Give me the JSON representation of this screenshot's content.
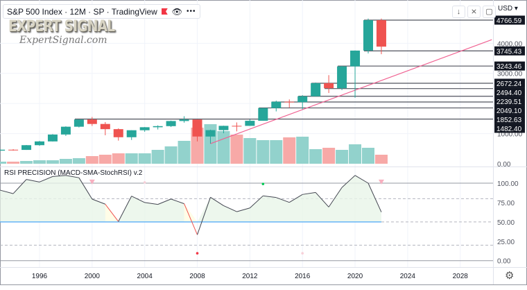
{
  "header": {
    "symbol": "S&P 500 Index",
    "interval": "12M",
    "exchange": "SP",
    "source": "TradingView",
    "legend_text": "S&P 500 Index · 12M · SP  · TradingView",
    "flag_icon": "flag-icon",
    "eye_icon": "eye-icon",
    "more_icon": "more-icon"
  },
  "watermark": {
    "logo": "EXPERT SIGNAL",
    "site": "ExpertSignal.com"
  },
  "toolbar": {
    "buttons": [
      "scroll-down-icon",
      "collapse-icon",
      "maximize-icon"
    ]
  },
  "price_axis": {
    "currency": "USD",
    "ticks": [
      "4000.00",
      "3000.00",
      "1000.00",
      "0.00"
    ]
  },
  "rsi_pane": {
    "title": "RSI PRECISION (MACD-SMA-StochRSI) v.2",
    "ticks": [
      "100.00",
      "75.00",
      "50.00",
      "25.00",
      "0.00"
    ]
  },
  "time_axis": {
    "ticks": [
      "1996",
      "2000",
      "2004",
      "2008",
      "2012",
      "2016",
      "2020",
      "2024",
      "2028"
    ],
    "settings_icon": "gear-icon"
  },
  "colors": {
    "up": "#26a69a",
    "down": "#ef5350",
    "vol_up": "#92d2cc",
    "vol_down": "#f7a9a7",
    "trendline": "#f06292",
    "rsi_line": "#434651",
    "rsi_mid": "#64b5f6"
  },
  "chart_data": [
    {
      "type": "candlestick",
      "title": "S&P 500 Index",
      "ylim": [
        0,
        4766.59
      ],
      "yscale": "linear",
      "grid": true,
      "candles": [
        {
          "year": 1993,
          "o": 435,
          "h": 471,
          "l": 429,
          "c": 466
        },
        {
          "year": 1994,
          "o": 466,
          "h": 482,
          "l": 435,
          "c": 459
        },
        {
          "year": 1995,
          "o": 459,
          "h": 622,
          "l": 459,
          "c": 616
        },
        {
          "year": 1996,
          "o": 616,
          "h": 757,
          "l": 597,
          "c": 741
        },
        {
          "year": 1997,
          "o": 741,
          "h": 983,
          "l": 737,
          "c": 970
        },
        {
          "year": 1998,
          "o": 970,
          "h": 1241,
          "l": 923,
          "c": 1229
        },
        {
          "year": 1999,
          "o": 1229,
          "h": 1469,
          "l": 1205,
          "c": 1469
        },
        {
          "year": 2000,
          "o": 1469,
          "h": 1553,
          "l": 1254,
          "c": 1320
        },
        {
          "year": 2001,
          "o": 1320,
          "h": 1383,
          "l": 945,
          "c": 1148
        },
        {
          "year": 2002,
          "o": 1148,
          "h": 1173,
          "l": 768,
          "c": 880
        },
        {
          "year": 2003,
          "o": 880,
          "h": 1112,
          "l": 789,
          "c": 1112
        },
        {
          "year": 2004,
          "o": 1112,
          "h": 1217,
          "l": 1060,
          "c": 1212
        },
        {
          "year": 2005,
          "o": 1212,
          "h": 1275,
          "l": 1137,
          "c": 1248
        },
        {
          "year": 2006,
          "o": 1248,
          "h": 1431,
          "l": 1219,
          "c": 1418
        },
        {
          "year": 2007,
          "o": 1418,
          "h": 1576,
          "l": 1363,
          "c": 1468
        },
        {
          "year": 2008,
          "o": 1468,
          "h": 1471,
          "l": 741,
          "c": 903
        },
        {
          "year": 2009,
          "o": 903,
          "h": 1130,
          "l": 667,
          "c": 1115
        },
        {
          "year": 2010,
          "o": 1115,
          "h": 1263,
          "l": 1011,
          "c": 1258
        },
        {
          "year": 2011,
          "o": 1258,
          "h": 1371,
          "l": 1075,
          "c": 1257
        },
        {
          "year": 2012,
          "o": 1257,
          "h": 1475,
          "l": 1259,
          "c": 1426
        },
        {
          "year": 2013,
          "o": 1426,
          "h": 1849,
          "l": 1426,
          "c": 1848
        },
        {
          "year": 2014,
          "o": 1848,
          "h": 2094,
          "l": 1737,
          "c": 2059
        },
        {
          "year": 2015,
          "o": 2059,
          "h": 2135,
          "l": 1867,
          "c": 2044
        },
        {
          "year": 2016,
          "o": 2044,
          "h": 2277,
          "l": 1810,
          "c": 2239
        },
        {
          "year": 2017,
          "o": 2239,
          "h": 2695,
          "l": 2239,
          "c": 2674
        },
        {
          "year": 2018,
          "o": 2674,
          "h": 2941,
          "l": 2347,
          "c": 2507
        },
        {
          "year": 2019,
          "o": 2507,
          "h": 3248,
          "l": 2444,
          "c": 3231
        },
        {
          "year": 2020,
          "o": 3231,
          "h": 3760,
          "l": 2192,
          "c": 3756
        },
        {
          "year": 2021,
          "o": 3756,
          "h": 4819,
          "l": 3662,
          "c": 4766
        },
        {
          "year": 2022,
          "o": 4766,
          "h": 4819,
          "l": 3636,
          "c": 3887
        }
      ],
      "volume_relative": [
        3,
        3,
        4,
        5,
        5,
        7,
        8,
        11,
        13,
        15,
        15,
        15,
        20,
        25,
        33,
        52,
        57,
        47,
        42,
        37,
        34,
        34,
        38,
        39,
        21,
        23,
        20,
        28,
        23,
        13
      ],
      "levels": [
        {
          "value": "4766.59",
          "from_year": 2021
        },
        {
          "value": "3745.43",
          "from_year": 2021
        },
        {
          "value": "3243.46",
          "from_year": 2019
        },
        {
          "value": "2672.24",
          "from_year": 2017
        },
        {
          "value": "2494.40",
          "from_year": 2018
        },
        {
          "value": "2239.51",
          "from_year": 2016
        },
        {
          "value": "2049.10",
          "from_year": 2014
        },
        {
          "value": "1852.63",
          "from_year": 2013
        },
        {
          "value": "1482.40",
          "from_year": 1999
        }
      ],
      "trendline": {
        "from": {
          "year": 2009,
          "price": 667
        },
        "to": {
          "year": 2030.4,
          "price": 4117
        }
      }
    },
    {
      "type": "line",
      "title": "RSI PRECISION (MACD-SMA-StochRSI) v.2",
      "ylim": [
        -10,
        120
      ],
      "years": [
        1993,
        1994,
        1995,
        1996,
        1997,
        1998,
        1999,
        2000,
        2001,
        2002,
        2003,
        2004,
        2005,
        2006,
        2007,
        2008,
        2009,
        2010,
        2011,
        2012,
        2013,
        2014,
        2015,
        2016,
        2017,
        2018,
        2019,
        2020,
        2021,
        2022
      ],
      "values": [
        91,
        86.5,
        104.8,
        101.5,
        108.6,
        110,
        107,
        79.4,
        72.9,
        50.5,
        83.3,
        75,
        72.6,
        79.5,
        73.5,
        33.5,
        81.8,
        71,
        63.2,
        68,
        83.6,
        81.5,
        75.2,
        85.4,
        88,
        69.2,
        94.4,
        110,
        100,
        62.7
      ],
      "bearish_segments": [
        [
          2001,
          2002
        ],
        [
          2007,
          2008
        ]
      ],
      "levels": {
        "solid": [
          100,
          0
        ],
        "dashed": [
          80,
          20
        ],
        "mid": 50
      },
      "markers": [
        {
          "year": 2000,
          "value": 101,
          "shape": "triangle-down",
          "color": "#f7b0c0"
        },
        {
          "year": 2004,
          "value": 101,
          "shape": "dot",
          "color": "#f7d0d8"
        },
        {
          "year": 2013,
          "value": 99,
          "shape": "dot",
          "color": "#00c853"
        },
        {
          "year": 2022,
          "value": 101,
          "shape": "triangle-down",
          "color": "#f7b0c0"
        },
        {
          "year": 2008,
          "value": 9.5,
          "shape": "dot",
          "color": "#f23645"
        },
        {
          "year": 2016,
          "value": 9.5,
          "shape": "dot",
          "color": "#f7d0d8"
        }
      ]
    }
  ]
}
